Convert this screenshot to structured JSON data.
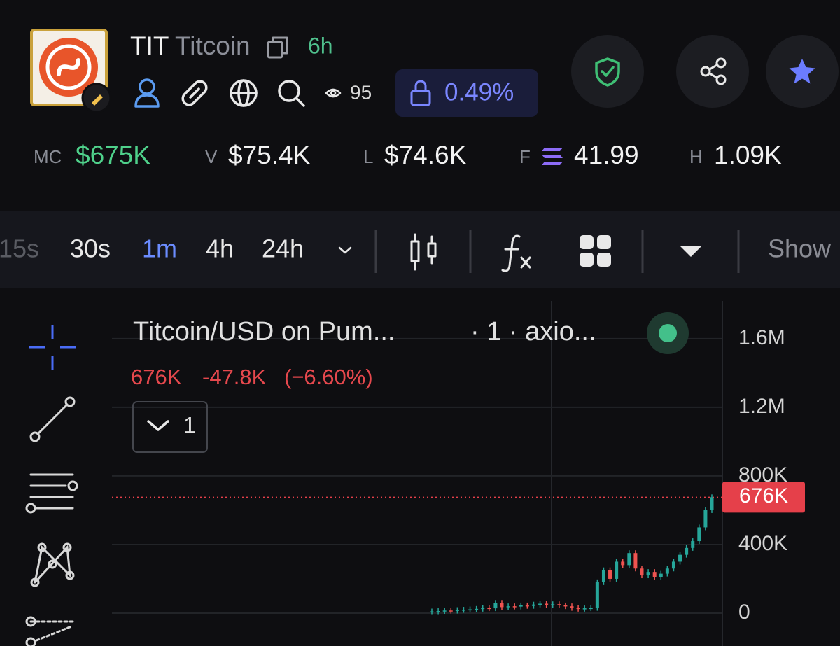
{
  "header": {
    "symbol": "TIT",
    "name": "Titcoin",
    "age": "6h",
    "watchers": "95",
    "lock": "0.49%"
  },
  "stats": [
    {
      "label": "MC",
      "value": "$675K"
    },
    {
      "label": "V",
      "value": "$75.4K"
    },
    {
      "label": "L",
      "value": "$74.6K"
    },
    {
      "label": "F",
      "value": "41.99"
    },
    {
      "label": "H",
      "value": "1.09K"
    }
  ],
  "timeframes": [
    "15s",
    "30s",
    "1m",
    "4h",
    "24h"
  ],
  "toolbar_right": "Show",
  "chart_data": {
    "type": "candlestick",
    "title": "Titcoin/USD on Pum...",
    "interval": "· 1 · axio...",
    "legend": {
      "price": "676K",
      "change": "-47.8K",
      "percent": "(−6.60%)"
    },
    "indicator_count": "1",
    "values": [
      10000,
      12000,
      15000,
      14000,
      18000,
      20000,
      22000,
      25000,
      30000,
      28000,
      60000,
      35000,
      40000,
      38000,
      45000,
      42000,
      50000,
      55000,
      48000,
      52000,
      45000,
      40000,
      30000,
      25000,
      28000,
      30000,
      180000,
      250000,
      200000,
      300000,
      280000,
      350000,
      260000,
      220000,
      240000,
      210000,
      230000,
      260000,
      300000,
      340000,
      380000,
      420000,
      500000,
      600000,
      676000
    ],
    "up_color": "#26a69a",
    "down_color": "#ef5350",
    "ylim": [
      -192000,
      1820000
    ],
    "yticks": [
      0,
      {
        "value": 400000,
        "label": "400K"
      },
      {
        "value": 800000,
        "label": "800K"
      },
      {
        "value": 1200000,
        "label": "1.2M"
      },
      {
        "value": 1600000,
        "label": "1.6M"
      }
    ],
    "grid": true,
    "price_line": {
      "value": 676000,
      "label": "676K"
    }
  }
}
